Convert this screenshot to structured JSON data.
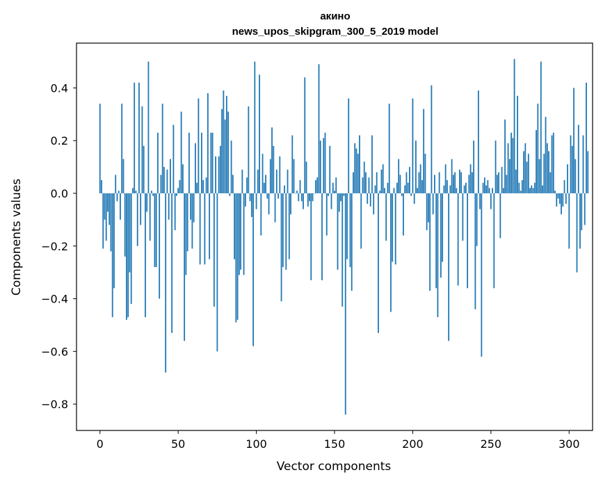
{
  "chart_data": {
    "type": "bar",
    "title": "акино",
    "subtitle": "news_upos_skipgram_300_5_2019 model",
    "xlabel": "Vector components",
    "ylabel": "Components values",
    "xlim": [
      -15,
      315
    ],
    "ylim": [
      -0.9,
      0.57
    ],
    "xticks": [
      0,
      50,
      100,
      150,
      200,
      250,
      300
    ],
    "yticks": [
      -0.8,
      -0.6,
      -0.4,
      -0.2,
      0.0,
      0.2,
      0.4
    ],
    "ytick_labels": [
      "−0.8",
      "−0.6",
      "−0.4",
      "−0.2",
      "0.0",
      "0.2",
      "0.4"
    ],
    "grid": false,
    "color": "#1f77b4",
    "x_start": 0,
    "values": [
      0.34,
      0.05,
      -0.21,
      -0.1,
      -0.18,
      -0.07,
      -0.12,
      -0.22,
      -0.47,
      -0.36,
      0.07,
      -0.03,
      0.01,
      -0.1,
      0.34,
      0.13,
      -0.24,
      -0.48,
      -0.47,
      -0.3,
      -0.42,
      0.02,
      0.42,
      0.01,
      -0.2,
      0.42,
      -0.12,
      0.33,
      0.18,
      -0.47,
      -0.07,
      0.5,
      -0.18,
      0.01,
      -0.01,
      -0.28,
      -0.28,
      0.23,
      -0.4,
      0.07,
      0.34,
      0.1,
      -0.68,
      0.09,
      -0.1,
      0.13,
      -0.53,
      0.26,
      -0.14,
      -0.01,
      0.02,
      0.05,
      0.31,
      0.11,
      -0.56,
      -0.31,
      -0.22,
      0.23,
      -0.1,
      -0.21,
      -0.11,
      0.19,
      0.04,
      0.36,
      -0.27,
      0.23,
      0.05,
      -0.27,
      0.06,
      0.38,
      -0.25,
      0.23,
      0.23,
      -0.43,
      0.14,
      -0.6,
      0.14,
      0.18,
      0.32,
      0.39,
      0.28,
      0.37,
      0.31,
      -0.01,
      0.2,
      0.07,
      -0.25,
      -0.49,
      -0.48,
      -0.31,
      -0.29,
      0.09,
      -0.31,
      -0.05,
      0.06,
      0.33,
      -0.03,
      -0.09,
      -0.58,
      0.5,
      -0.06,
      0.09,
      0.45,
      -0.16,
      0.15,
      0.04,
      0.07,
      -0.02,
      -0.08,
      0.13,
      0.25,
      0.18,
      -0.11,
      0.09,
      -0.02,
      0.14,
      -0.41,
      -0.28,
      0.03,
      -0.29,
      0.09,
      -0.25,
      -0.08,
      0.22,
      0.13,
      0.0,
      0.01,
      -0.03,
      0.05,
      -0.03,
      -0.06,
      0.44,
      0.12,
      -0.05,
      -0.03,
      -0.33,
      -0.03,
      0.0,
      0.05,
      0.06,
      0.49,
      0.2,
      -0.33,
      0.21,
      0.23,
      -0.16,
      -0.01,
      0.18,
      -0.06,
      0.04,
      0.01,
      0.06,
      -0.29,
      -0.07,
      -0.03,
      -0.43,
      -0.01,
      -0.84,
      -0.25,
      0.36,
      -0.28,
      -0.37,
      0.08,
      0.19,
      0.17,
      0.15,
      0.22,
      -0.21,
      0.06,
      0.12,
      0.08,
      -0.04,
      0.06,
      -0.05,
      0.22,
      -0.08,
      0.03,
      0.08,
      -0.53,
      0.01,
      0.09,
      0.11,
      0.02,
      -0.18,
      0.04,
      0.34,
      -0.45,
      -0.26,
      0.02,
      -0.27,
      0.04,
      0.13,
      0.07,
      -0.01,
      -0.16,
      0.03,
      0.08,
      0.04,
      0.1,
      -0.01,
      0.36,
      -0.04,
      0.2,
      0.02,
      0.08,
      0.11,
      0.05,
      0.32,
      0.15,
      -0.14,
      -0.11,
      -0.37,
      0.41,
      -0.08,
      0.07,
      -0.36,
      -0.47,
      0.08,
      -0.32,
      -0.26,
      0.03,
      0.11,
      0.05,
      -0.56,
      0.03,
      0.13,
      0.07,
      0.08,
      0.02,
      -0.35,
      0.09,
      0.08,
      -0.18,
      0.03,
      0.04,
      -0.36,
      0.07,
      0.11,
      0.08,
      0.2,
      -0.44,
      -0.2,
      0.39,
      -0.06,
      -0.62,
      0.04,
      0.06,
      0.03,
      0.05,
      0.02,
      -0.06,
      0.02,
      -0.36,
      0.2,
      0.07,
      0.08,
      -0.17,
      0.1,
      0.02,
      0.28,
      0.07,
      0.19,
      0.13,
      0.23,
      0.21,
      0.51,
      0.09,
      0.37,
      0.04,
      0.01,
      0.05,
      0.16,
      0.19,
      0.12,
      0.15,
      0.02,
      0.03,
      0.02,
      0.04,
      0.24,
      0.34,
      0.13,
      0.5,
      0.03,
      0.15,
      0.29,
      0.19,
      0.16,
      0.08,
      0.22,
      0.23,
      0.01,
      -0.05,
      -0.02,
      -0.04,
      -0.08,
      -0.05,
      0.05,
      -0.04,
      0.11,
      -0.21,
      0.22,
      0.18,
      0.4,
      0.13,
      -0.3,
      0.26,
      -0.21,
      -0.14,
      0.22,
      -0.12,
      0.42,
      0.16
    ]
  }
}
